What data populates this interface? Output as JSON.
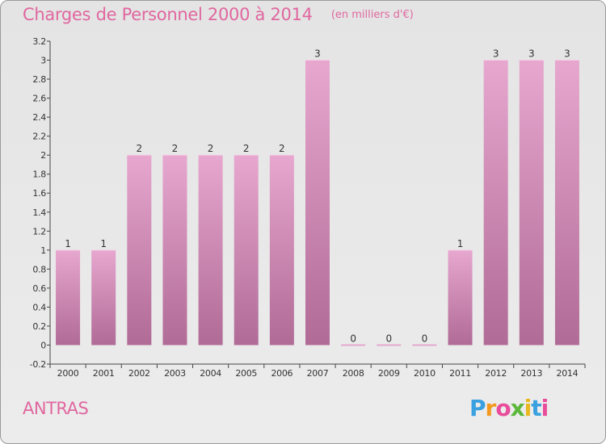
{
  "title": "Charges de Personnel 2000 à 2014",
  "subtitle": "(en milliers d'€)",
  "place": "ANTRAS",
  "brand": "Proxiti",
  "brand_colors": [
    "#3aa0e0",
    "#f39a1e",
    "#e84c9a",
    "#5bb83a",
    "#e8b820",
    "#3aa0e0",
    "#e84c9a"
  ],
  "colors": {
    "title": "#e0679f",
    "bar_top": "#e7a7cf",
    "bar_bottom": "#b06b96",
    "axis": "#444444",
    "grid": "#d0d0d0"
  },
  "chart_data": {
    "type": "bar",
    "categories": [
      "2000",
      "2001",
      "2002",
      "2003",
      "2004",
      "2005",
      "2006",
      "2007",
      "2008",
      "2009",
      "2010",
      "2011",
      "2012",
      "2013",
      "2014"
    ],
    "values": [
      1,
      1,
      2,
      2,
      2,
      2,
      2,
      3,
      0,
      0,
      0,
      1,
      3,
      3,
      3
    ],
    "data_labels": [
      "1",
      "1",
      "2",
      "2",
      "2",
      "2",
      "2",
      "3",
      "0",
      "0",
      "0",
      "1",
      "3",
      "3",
      "3"
    ],
    "yticks": [
      "-0.2",
      "0",
      "0.2",
      "0.4",
      "0.6",
      "0.8",
      "1",
      "1.2",
      "1.4",
      "1.6",
      "1.8",
      "2",
      "2.2",
      "2.4",
      "2.6",
      "2.8",
      "3",
      "3.2"
    ],
    "ylim": [
      -0.2,
      3.2
    ],
    "xlabel": "",
    "ylabel": "",
    "grid": false,
    "legend": "none"
  }
}
